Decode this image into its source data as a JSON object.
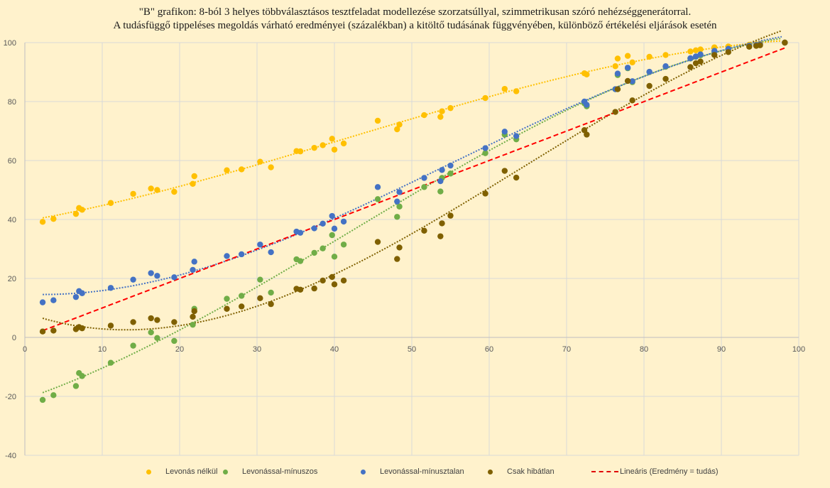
{
  "chart_data": {
    "type": "scatter",
    "title": "\"B\" grafikon: 8-ból 3 helyes többválasztásos tesztfeladat modellezése szorzatsúllyal, szimmetrikusan szóró nehézséggenerátorral.",
    "subtitle": "A tudásfüggő tippeléses megoldás várható eredményei (százalékban) a kitöltő tudásának függvényében, különböző értékelési eljárások esetén",
    "xlabel": "",
    "ylabel": "",
    "xlim": [
      0,
      100
    ],
    "ylim": [
      -40,
      100
    ],
    "x_ticks": [
      "0",
      "10",
      "20",
      "30",
      "40",
      "50",
      "60",
      "70",
      "80",
      "90",
      "100"
    ],
    "y_ticks": [
      "100",
      "80",
      "60",
      "40",
      "20",
      "0",
      "-20",
      "-40"
    ],
    "grid": true,
    "legend_position": "bottom",
    "x": [
      2.3,
      3.7,
      6.6,
      7.0,
      7.4,
      11.1,
      14.0,
      16.3,
      17.1,
      19.3,
      21.7,
      21.9,
      26.1,
      28.0,
      30.4,
      31.8,
      35.1,
      35.6,
      37.4,
      38.5,
      39.7,
      40.0,
      41.2,
      45.6,
      48.1,
      48.4,
      51.6,
      53.7,
      53.9,
      55.0,
      59.5,
      62.0,
      63.5,
      72.3,
      72.6,
      76.3,
      76.6,
      77.9,
      78.5,
      80.7,
      82.8,
      86.0,
      86.7,
      87.3,
      89.1,
      90.9,
      93.6,
      94.5,
      95.0,
      98.2
    ],
    "series": [
      {
        "name": "Levonás nélkül",
        "color": "#ffc000",
        "values": [
          39.2,
          40.2,
          41.9,
          43.9,
          43.3,
          45.6,
          48.7,
          50.5,
          50.0,
          49.4,
          52.1,
          54.7,
          56.7,
          57.0,
          59.6,
          57.7,
          63.2,
          63.1,
          64.3,
          65.2,
          67.4,
          63.7,
          65.8,
          73.5,
          70.6,
          72.2,
          75.4,
          74.8,
          76.7,
          77.8,
          81.2,
          84.3,
          83.5,
          89.6,
          89.2,
          92.0,
          94.6,
          95.5,
          93.3,
          95.2,
          95.8,
          97.0,
          97.4,
          97.7,
          98.4,
          98.7,
          99.3,
          99.4,
          99.6,
          100.0
        ]
      },
      {
        "name": "Levonással-mínuszos",
        "color": "#70ad47",
        "values": [
          -21.2,
          -19.6,
          -16.5,
          -12.1,
          -13.1,
          -8.6,
          -2.8,
          1.7,
          -0.2,
          -1.2,
          4.3,
          9.7,
          13.1,
          14.1,
          19.6,
          15.2,
          26.5,
          25.9,
          28.7,
          30.2,
          34.7,
          27.4,
          31.5,
          46.9,
          40.9,
          44.4,
          51.0,
          49.5,
          54.1,
          55.6,
          62.5,
          68.8,
          67.2,
          79.4,
          78.4,
          84.2,
          89.0,
          91.3,
          86.6,
          90.0,
          91.8,
          94.6,
          95.2,
          95.7,
          96.9,
          97.7,
          98.9,
          99.1,
          99.3,
          100.0
        ]
      },
      {
        "name": "Levonással-mínusztalan",
        "color": "#4472c4",
        "values": [
          11.9,
          12.6,
          13.7,
          15.7,
          15.0,
          16.8,
          19.6,
          21.8,
          20.9,
          20.4,
          22.9,
          25.7,
          27.6,
          28.2,
          31.5,
          28.9,
          35.9,
          35.5,
          37.0,
          38.6,
          41.2,
          36.9,
          39.3,
          51.0,
          46.1,
          49.3,
          54.1,
          53.0,
          56.8,
          58.3,
          64.2,
          69.8,
          68.3,
          80.0,
          78.9,
          84.2,
          89.5,
          91.5,
          86.9,
          90.1,
          92.0,
          94.7,
          95.3,
          96.0,
          97.2,
          97.9,
          99.0,
          99.2,
          99.4,
          100.0
        ]
      },
      {
        "name": "Csak hibátlan",
        "color": "#7f6000",
        "values": [
          2.0,
          2.3,
          2.8,
          3.5,
          3.1,
          4.0,
          5.2,
          6.5,
          5.9,
          5.2,
          7.0,
          8.9,
          9.7,
          10.5,
          13.3,
          11.3,
          16.5,
          16.2,
          16.6,
          19.3,
          20.5,
          18.0,
          19.3,
          32.4,
          26.6,
          30.5,
          36.2,
          34.3,
          38.7,
          41.3,
          48.8,
          56.5,
          54.2,
          70.3,
          68.8,
          76.5,
          84.2,
          87.0,
          80.4,
          85.3,
          87.7,
          91.7,
          93.0,
          93.6,
          95.8,
          96.8,
          98.6,
          98.9,
          99.1,
          100.0
        ]
      },
      {
        "name": "Lineáris (Eredmény = tudás)",
        "color": "#ff0000",
        "type": "line",
        "x": [
          2.3,
          98.2
        ],
        "values": [
          2.3,
          98.2
        ]
      }
    ]
  },
  "legend": {
    "items": [
      {
        "label": "Levonás nélkül",
        "color": "#ffc000"
      },
      {
        "label": "Levonással-mínuszos",
        "color": "#70ad47"
      },
      {
        "label": "Levonással-mínusztalan",
        "color": "#4472c4"
      },
      {
        "label": "Csak hibátlan",
        "color": "#7f6000"
      },
      {
        "label": "Lineáris (Eredmény = tudás)",
        "color": "#ff0000"
      }
    ]
  }
}
